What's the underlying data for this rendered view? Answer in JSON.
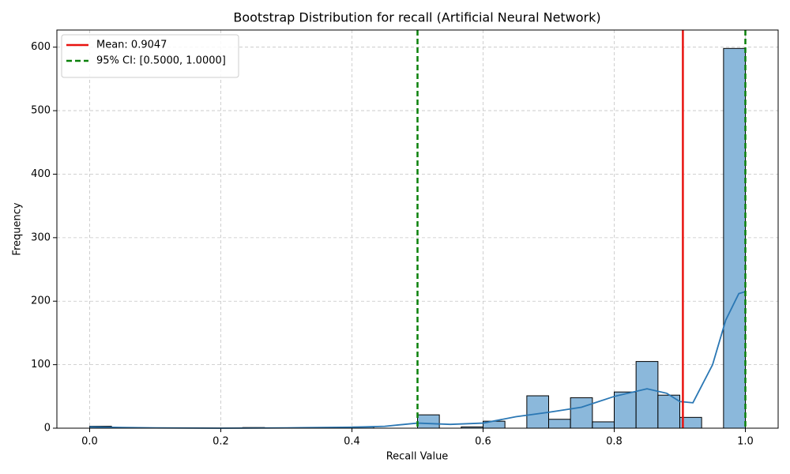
{
  "chart_data": {
    "type": "histogram",
    "title": "Bootstrap Distribution for recall (Artificial Neural Network)",
    "xlabel": "Recall Value",
    "ylabel": "Frequency",
    "bins": [
      0,
      0.0333,
      0.0667,
      0.1,
      0.1333,
      0.1667,
      0.2,
      0.2333,
      0.2667,
      0.3,
      0.3333,
      0.3667,
      0.4,
      0.4333,
      0.4667,
      0.5,
      0.5333,
      0.5667,
      0.6,
      0.6333,
      0.6667,
      0.7,
      0.7333,
      0.7667,
      0.8,
      0.8333,
      0.8667,
      0.9,
      0.9333,
      0.9667,
      1
    ],
    "counts": [
      3,
      0,
      0,
      0,
      0,
      0,
      0,
      1,
      0,
      0,
      0,
      0,
      2,
      0,
      0,
      21,
      0,
      2,
      11,
      0,
      51,
      14,
      48,
      10,
      57,
      105,
      52,
      17,
      0,
      598
    ],
    "color": "#8bb8db",
    "kde": {
      "color": "#2a77b4",
      "x": [
        0,
        0.05,
        0.1,
        0.2,
        0.3,
        0.4,
        0.45,
        0.5,
        0.55,
        0.6,
        0.65,
        0.7,
        0.75,
        0.8,
        0.85,
        0.88,
        0.9,
        0.92,
        0.95,
        0.97,
        0.99,
        1.0
      ],
      "values": [
        2,
        1,
        0.5,
        0,
        0.5,
        1.5,
        3,
        8,
        6,
        8,
        18,
        25,
        33,
        50,
        62,
        55,
        42,
        40,
        100,
        170,
        212,
        215
      ]
    },
    "vlines": [
      {
        "label": "Mean: 0.9047",
        "value": 0.9047,
        "color": "#e8120f",
        "style": "solid"
      },
      {
        "label": "95% CI: [0.5000, 1.0000]",
        "value": 0.5,
        "color": "#0a800a",
        "style": "dashed"
      },
      {
        "value": 1.0,
        "color": "#0a800a",
        "style": "dashed"
      }
    ],
    "xlim": [
      -0.05,
      1.05
    ],
    "ylim": [
      0,
      627
    ],
    "xticks": [
      {
        "value": 0,
        "label": "0.0"
      },
      0.2,
      0.4,
      0.6,
      0.8,
      {
        "value": 1,
        "label": "1.0"
      }
    ],
    "yticks": [
      0,
      100,
      200,
      300,
      400,
      500,
      600
    ],
    "grid": true,
    "legend": "upper left"
  }
}
